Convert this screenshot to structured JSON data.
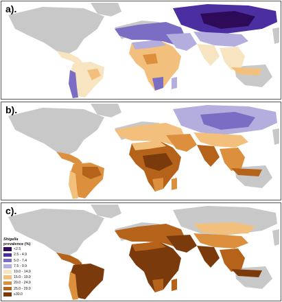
{
  "panels": [
    {
      "label": "a)."
    },
    {
      "label": "b)."
    },
    {
      "label": "c)."
    }
  ],
  "legend": {
    "title_italic": "Shigella",
    "title_rest": "prevalence (%)",
    "items": [
      {
        "label": "<2.5",
        "color": "#2d0b59"
      },
      {
        "label": "2.5 - 4.9",
        "color": "#4b2fa0"
      },
      {
        "label": "5.0 - 7.4",
        "color": "#7b6cc4"
      },
      {
        "label": "7.5 - 9.9",
        "color": "#b3aede"
      },
      {
        "label": "10.0 - 14.9",
        "color": "#f7e4c0"
      },
      {
        "label": "15.0 - 19.9",
        "color": "#f2c07c"
      },
      {
        "label": "20.0 - 24.9",
        "color": "#dc8f3c"
      },
      {
        "label": "25.0 - 29.9",
        "color": "#b5621a"
      },
      {
        "label": "≥30.0",
        "color": "#7a3a0c"
      }
    ]
  },
  "colors": {
    "no_data_land": "#c8c8c8",
    "background": "#ffffff",
    "border": "#555555"
  }
}
